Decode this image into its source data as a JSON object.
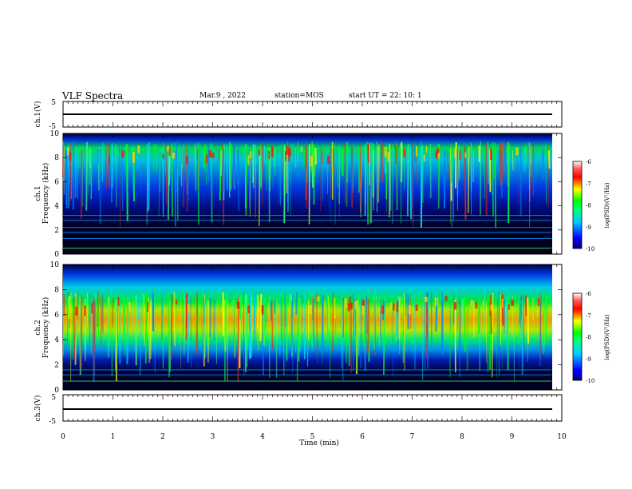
{
  "header": {
    "title": "VLF Spectra",
    "date": "Mar.9  , 2022",
    "station": "station=MOS",
    "start": "start  UT  =   22: 10: 1"
  },
  "colors": {
    "spectrogram_bg": "#00001e",
    "low": "#0000ff",
    "mid_low": "#00c8ff",
    "mid": "#00ff00",
    "mid_high": "#ffff00",
    "high": "#ff0000"
  },
  "chart_data": [
    {
      "type": "line",
      "panel": "ch1-waveform",
      "ylabel": "ch.1(V)",
      "ylim": [
        -5,
        5
      ],
      "yticks": [
        "5",
        "-5"
      ],
      "xlim": [
        0,
        10
      ],
      "level": 0
    },
    {
      "type": "heatmap",
      "panel": "ch1-spectrogram",
      "ylabel": "ch.1\nFrequency (kHz)",
      "ylim": [
        0,
        10
      ],
      "yticks": [
        "0",
        "2",
        "4",
        "6",
        "8",
        "10"
      ],
      "xlim": [
        0,
        10
      ],
      "colorbar": {
        "label": "log(PSD)(V²/Hz)",
        "ticks": [
          "-6",
          "-7",
          "-8",
          "-9",
          "-10"
        ],
        "range": [
          -10,
          -6
        ]
      },
      "band_center_khz": 8.3,
      "horizontal_lines_khz": [
        0.5,
        1.3,
        1.8,
        2.2,
        2.8,
        3.2
      ]
    },
    {
      "type": "heatmap",
      "panel": "ch2-spectrogram",
      "ylabel": "ch.2\nFrequency (kHz)",
      "ylim": [
        0,
        10
      ],
      "yticks": [
        "0",
        "2",
        "4",
        "6",
        "8",
        "10"
      ],
      "xlim": [
        0,
        10
      ],
      "colorbar": {
        "label": "log(PSD)(V²/Hz)",
        "ticks": [
          "-6",
          "-7",
          "-8",
          "-9",
          "-10"
        ],
        "range": [
          -10,
          -6
        ]
      },
      "band_center_khz": 6.8,
      "horizontal_lines_khz": [
        0.7,
        1.2,
        1.6
      ]
    },
    {
      "type": "line",
      "panel": "ch3-waveform",
      "ylabel": "ch.3(V)",
      "ylim": [
        -5,
        5
      ],
      "yticks": [
        "5",
        "-5"
      ],
      "xlim": [
        0,
        10
      ],
      "level": 0,
      "xlabel": "Time  (min)",
      "xticks": [
        "0",
        "1",
        "2",
        "3",
        "4",
        "5",
        "6",
        "7",
        "8",
        "9",
        "10"
      ]
    }
  ]
}
